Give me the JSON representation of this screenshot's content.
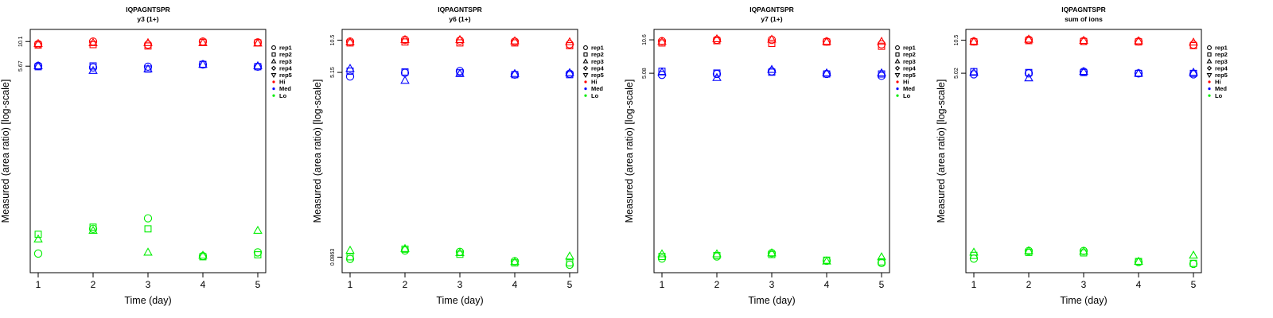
{
  "legend": {
    "items": [
      "rep1",
      "rep2",
      "rep3",
      "rep4",
      "rep5",
      "Hi",
      "Med",
      "Lo"
    ],
    "shapes": [
      "circle",
      "square",
      "triangle-up",
      "diamond",
      "triangle-down",
      "dot",
      "dot",
      "dot"
    ],
    "colors": [
      "#000000",
      "#000000",
      "#000000",
      "#000000",
      "#000000",
      "#ff0000",
      "#0000ff",
      "#00ee00"
    ]
  },
  "colors": {
    "Hi": "#ff0000",
    "Med": "#0000ff",
    "Lo": "#00ee00"
  },
  "chart_data": [
    {
      "type": "scatter",
      "title": "IQPAGNTSPR",
      "subtitle": "y3 (1+)",
      "xlabel": "Time (day)",
      "ylabel": "Measured (area ratio) [log-scale]",
      "x_ticks": [
        1,
        2,
        3,
        4,
        5
      ],
      "y_ticks": [
        "5.67",
        "10.1"
      ],
      "y_scale": "log",
      "ylim": [
        0.05,
        12
      ],
      "series": [
        {
          "group": "Hi",
          "rep": "rep1",
          "x": [
            1,
            2,
            3,
            4,
            5
          ],
          "y": [
            9.5,
            10.1,
            9.4,
            10.1,
            9.9
          ]
        },
        {
          "group": "Hi",
          "rep": "rep2",
          "x": [
            1,
            2,
            3,
            4,
            5
          ],
          "y": [
            9.3,
            9.4,
            9.1,
            9.9,
            9.8
          ]
        },
        {
          "group": "Hi",
          "rep": "rep3",
          "x": [
            1,
            2,
            3,
            4,
            5
          ],
          "y": [
            9.6,
            9.8,
            9.8,
            9.8,
            9.7
          ]
        },
        {
          "group": "Med",
          "rep": "rep1",
          "x": [
            1,
            2,
            3,
            4,
            5
          ],
          "y": [
            5.7,
            5.5,
            5.6,
            5.9,
            5.6
          ]
        },
        {
          "group": "Med",
          "rep": "rep2",
          "x": [
            1,
            2,
            3,
            4,
            5
          ],
          "y": [
            5.6,
            5.7,
            5.3,
            5.9,
            5.6
          ]
        },
        {
          "group": "Med",
          "rep": "rep3",
          "x": [
            1,
            2,
            3,
            4,
            5
          ],
          "y": [
            5.7,
            5.1,
            5.3,
            5.9,
            5.7
          ]
        },
        {
          "group": "Lo",
          "rep": "rep1",
          "x": [
            1,
            2,
            3,
            4,
            5
          ],
          "y": [
            0.07,
            0.125,
            0.16,
            0.066,
            0.072
          ]
        },
        {
          "group": "Lo",
          "rep": "rep2",
          "x": [
            1,
            2,
            3,
            4,
            5
          ],
          "y": [
            0.11,
            0.13,
            0.125,
            0.065,
            0.068
          ]
        },
        {
          "group": "Lo",
          "rep": "rep3",
          "x": [
            1,
            2,
            3,
            4,
            5
          ],
          "y": [
            0.098,
            0.12,
            0.072,
            0.067,
            0.12
          ]
        }
      ]
    },
    {
      "type": "scatter",
      "title": "IQPAGNTSPR",
      "subtitle": "y6 (1+)",
      "xlabel": "Time (day)",
      "ylabel": "Measured (area ratio) [log-scale]",
      "x_ticks": [
        1,
        2,
        3,
        4,
        5
      ],
      "y_ticks": [
        "0.0863",
        "5.15",
        "10.5"
      ],
      "y_scale": "log",
      "ylim": [
        0.068,
        12
      ],
      "series": [
        {
          "group": "Hi",
          "rep": "rep1",
          "x": [
            1,
            2,
            3,
            4,
            5
          ],
          "y": [
            10.2,
            10.6,
            10.4,
            10.2,
            9.6
          ]
        },
        {
          "group": "Hi",
          "rep": "rep2",
          "x": [
            1,
            2,
            3,
            4,
            5
          ],
          "y": [
            9.9,
            10.1,
            9.9,
            9.9,
            9.3
          ]
        },
        {
          "group": "Hi",
          "rep": "rep3",
          "x": [
            1,
            2,
            3,
            4,
            5
          ],
          "y": [
            10.1,
            10.6,
            10.6,
            10.3,
            10.1
          ]
        },
        {
          "group": "Med",
          "rep": "rep1",
          "x": [
            1,
            2,
            3,
            4,
            5
          ],
          "y": [
            4.7,
            5.1,
            5.3,
            4.9,
            5.0
          ]
        },
        {
          "group": "Med",
          "rep": "rep2",
          "x": [
            1,
            2,
            3,
            4,
            5
          ],
          "y": [
            5.3,
            5.2,
            5.1,
            4.9,
            4.9
          ]
        },
        {
          "group": "Med",
          "rep": "rep3",
          "x": [
            1,
            2,
            3,
            4,
            5
          ],
          "y": [
            5.6,
            4.3,
            5.0,
            5.0,
            5.1
          ]
        },
        {
          "group": "Lo",
          "rep": "rep1",
          "x": [
            1,
            2,
            3,
            4,
            5
          ],
          "y": [
            0.083,
            0.1,
            0.097,
            0.079,
            0.073
          ]
        },
        {
          "group": "Lo",
          "rep": "rep2",
          "x": [
            1,
            2,
            3,
            4,
            5
          ],
          "y": [
            0.087,
            0.103,
            0.092,
            0.076,
            0.076
          ]
        },
        {
          "group": "Lo",
          "rep": "rep3",
          "x": [
            1,
            2,
            3,
            4,
            5
          ],
          "y": [
            0.1,
            0.104,
            0.095,
            0.078,
            0.088
          ]
        }
      ]
    },
    {
      "type": "scatter",
      "title": "IQPAGNTSPR",
      "subtitle": "y7 (1+)",
      "xlabel": "Time (day)",
      "ylabel": "Measured (area ratio) [log-scale]",
      "x_ticks": [
        1,
        2,
        3,
        4,
        5
      ],
      "y_ticks": [
        "5.08",
        "10.6"
      ],
      "y_scale": "log",
      "ylim": [
        0.07,
        12
      ],
      "series": [
        {
          "group": "Hi",
          "rep": "rep1",
          "x": [
            1,
            2,
            3,
            4,
            5
          ],
          "y": [
            10.3,
            10.6,
            10.6,
            10.2,
            9.6
          ]
        },
        {
          "group": "Hi",
          "rep": "rep2",
          "x": [
            1,
            2,
            3,
            4,
            5
          ],
          "y": [
            9.9,
            10.4,
            9.8,
            10.1,
            9.2
          ]
        },
        {
          "group": "Hi",
          "rep": "rep3",
          "x": [
            1,
            2,
            3,
            4,
            5
          ],
          "y": [
            10.2,
            10.8,
            10.7,
            10.2,
            10.2
          ]
        },
        {
          "group": "Med",
          "rep": "rep1",
          "x": [
            1,
            2,
            3,
            4,
            5
          ],
          "y": [
            4.9,
            5.0,
            5.3,
            5.0,
            4.8
          ]
        },
        {
          "group": "Med",
          "rep": "rep2",
          "x": [
            1,
            2,
            3,
            4,
            5
          ],
          "y": [
            5.3,
            5.1,
            5.2,
            5.0,
            5.0
          ]
        },
        {
          "group": "Med",
          "rep": "rep3",
          "x": [
            1,
            2,
            3,
            4,
            5
          ],
          "y": [
            5.2,
            4.6,
            5.5,
            5.1,
            5.1
          ]
        },
        {
          "group": "Lo",
          "rep": "rep1",
          "x": [
            1,
            2,
            3,
            4,
            5
          ],
          "y": [
            0.086,
            0.09,
            0.097,
            0.082,
            0.078
          ]
        },
        {
          "group": "Lo",
          "rep": "rep2",
          "x": [
            1,
            2,
            3,
            4,
            5
          ],
          "y": [
            0.09,
            0.092,
            0.094,
            0.083,
            0.08
          ]
        },
        {
          "group": "Lo",
          "rep": "rep3",
          "x": [
            1,
            2,
            3,
            4,
            5
          ],
          "y": [
            0.095,
            0.095,
            0.097,
            0.081,
            0.089
          ]
        }
      ]
    },
    {
      "type": "scatter",
      "title": "IQPAGNTSPR",
      "subtitle": "sum of ions",
      "xlabel": "Time (day)",
      "ylabel": "Measured (area ratio) [log-scale]",
      "x_ticks": [
        1,
        2,
        3,
        4,
        5
      ],
      "y_ticks": [
        "5.02",
        "10.5"
      ],
      "y_scale": "log",
      "ylim": [
        0.065,
        12
      ],
      "series": [
        {
          "group": "Hi",
          "rep": "rep1",
          "x": [
            1,
            2,
            3,
            4,
            5
          ],
          "y": [
            10.2,
            10.6,
            10.3,
            10.2,
            9.5
          ]
        },
        {
          "group": "Hi",
          "rep": "rep2",
          "x": [
            1,
            2,
            3,
            4,
            5
          ],
          "y": [
            10.1,
            10.4,
            10.2,
            10.1,
            9.3
          ]
        },
        {
          "group": "Hi",
          "rep": "rep3",
          "x": [
            1,
            2,
            3,
            4,
            5
          ],
          "y": [
            10.2,
            10.7,
            10.4,
            10.3,
            10.0
          ]
        },
        {
          "group": "Med",
          "rep": "rep1",
          "x": [
            1,
            2,
            3,
            4,
            5
          ],
          "y": [
            4.9,
            5.0,
            5.2,
            5.0,
            4.9
          ]
        },
        {
          "group": "Med",
          "rep": "rep2",
          "x": [
            1,
            2,
            3,
            4,
            5
          ],
          "y": [
            5.2,
            5.1,
            5.1,
            5.0,
            5.0
          ]
        },
        {
          "group": "Med",
          "rep": "rep3",
          "x": [
            1,
            2,
            3,
            4,
            5
          ],
          "y": [
            5.1,
            4.5,
            5.2,
            5.0,
            5.1
          ]
        },
        {
          "group": "Lo",
          "rep": "rep1",
          "x": [
            1,
            2,
            3,
            4,
            5
          ],
          "y": [
            0.08,
            0.095,
            0.095,
            0.074,
            0.071
          ]
        },
        {
          "group": "Lo",
          "rep": "rep2",
          "x": [
            1,
            2,
            3,
            4,
            5
          ],
          "y": [
            0.086,
            0.092,
            0.091,
            0.075,
            0.072
          ]
        },
        {
          "group": "Lo",
          "rep": "rep3",
          "x": [
            1,
            2,
            3,
            4,
            5
          ],
          "y": [
            0.092,
            0.095,
            0.094,
            0.075,
            0.086
          ]
        }
      ]
    }
  ]
}
